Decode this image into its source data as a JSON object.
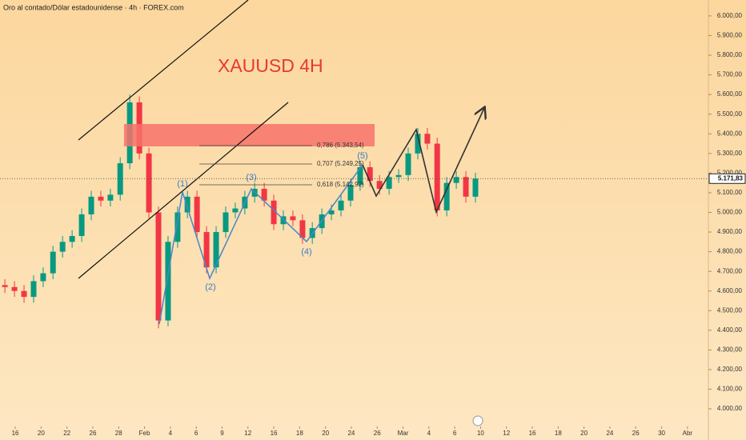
{
  "chart_data": {
    "type": "candlestick",
    "title": "Oro al contado/Dólar estadounidense · 4h · FOREX.com",
    "annotation": "XAUUSD 4H",
    "fib_labels": [
      "0,786 (5.343,54)",
      "0,707 (5.249,25)",
      "0,618 (5.142,92)"
    ],
    "wave_labels": [
      "(1)",
      "(2)",
      "(3)",
      "(4)",
      "(5)"
    ],
    "last_price": {
      "value": 5171.83,
      "label": "5.171,83"
    },
    "up_color": "#089981",
    "down_color": "#f23645",
    "x": [
      -0.4,
      -0.03,
      0.34,
      0.71,
      1.08,
      1.46,
      1.83,
      2.2,
      2.57,
      2.94,
      3.31,
      3.68,
      4.06,
      4.43,
      4.8,
      5.17,
      5.54,
      5.91,
      6.28,
      6.66,
      7.03,
      7.4,
      7.77,
      8.14,
      8.51,
      8.88,
      9.26,
      9.63,
      10.0,
      10.37,
      10.74,
      11.11,
      11.49,
      11.86,
      12.23,
      12.6,
      12.97,
      13.34,
      13.72,
      14.09,
      14.46,
      14.83,
      15.2,
      15.57,
      15.94,
      16.32,
      16.69,
      17.06,
      17.43,
      17.8
    ],
    "open": [
      4630,
      4620,
      4600,
      4570,
      4650,
      4690,
      4800,
      4850,
      4880,
      4990,
      5080,
      5060,
      5090,
      5250,
      5560,
      5300,
      5000,
      4450,
      4850,
      5000,
      5080,
      4900,
      4720,
      4900,
      5000,
      5020,
      5080,
      5120,
      5060,
      4940,
      4980,
      4960,
      4870,
      4920,
      4990,
      5010,
      5060,
      5140,
      5230,
      5160,
      5120,
      5180,
      5190,
      5300,
      5400,
      5350,
      5010,
      5150,
      5180,
      5080
    ],
    "high": [
      4660,
      4650,
      4630,
      4680,
      4720,
      4830,
      4880,
      4910,
      5020,
      5110,
      5110,
      5120,
      5280,
      5600,
      5590,
      5330,
      5030,
      4880,
      5030,
      5110,
      5110,
      4930,
      4930,
      5030,
      5050,
      5110,
      5150,
      5150,
      5090,
      5010,
      5010,
      4990,
      4950,
      5020,
      5040,
      5090,
      5170,
      5260,
      5260,
      5190,
      5210,
      5220,
      5330,
      5430,
      5430,
      5380,
      5180,
      5210,
      5210,
      5202
    ],
    "low": [
      4590,
      4570,
      4540,
      4540,
      4620,
      4660,
      4770,
      4820,
      4850,
      4960,
      5030,
      5030,
      5060,
      5220,
      5270,
      4970,
      4410,
      4420,
      4820,
      4970,
      4870,
      4690,
      4690,
      4870,
      4970,
      4990,
      5050,
      5030,
      4910,
      4910,
      4930,
      4840,
      4840,
      4890,
      4960,
      4980,
      5030,
      5110,
      5130,
      5090,
      5090,
      5150,
      5160,
      5270,
      5320,
      4980,
      4980,
      5120,
      5050,
      5050
    ],
    "close": [
      4620,
      4600,
      4570,
      4650,
      4690,
      4800,
      4850,
      4880,
      4990,
      5080,
      5060,
      5090,
      5250,
      5560,
      5300,
      5000,
      4450,
      4850,
      5000,
      5080,
      4900,
      4720,
      4900,
      5000,
      5020,
      5080,
      5120,
      5060,
      4940,
      4980,
      4960,
      4870,
      4920,
      4990,
      5010,
      5060,
      5140,
      5230,
      5160,
      5120,
      5180,
      5190,
      5300,
      5400,
      5350,
      5010,
      5150,
      5180,
      5080,
      5172
    ],
    "xlim": [
      -0.59,
      26.81
    ],
    "xticks": [
      {
        "value": 0,
        "label": "16"
      },
      {
        "value": 1,
        "label": "20"
      },
      {
        "value": 2,
        "label": "22"
      },
      {
        "value": 3,
        "label": "26"
      },
      {
        "value": 4,
        "label": "28"
      },
      {
        "value": 5,
        "label": "Feb"
      },
      {
        "value": 6,
        "label": "4"
      },
      {
        "value": 7,
        "label": "6"
      },
      {
        "value": 8,
        "label": "9"
      },
      {
        "value": 9,
        "label": "12"
      },
      {
        "value": 10,
        "label": "16"
      },
      {
        "value": 11,
        "label": "18"
      },
      {
        "value": 12,
        "label": "20"
      },
      {
        "value": 13,
        "label": "24"
      },
      {
        "value": 14,
        "label": "26"
      },
      {
        "value": 15,
        "label": "Mar"
      },
      {
        "value": 16,
        "label": "4"
      },
      {
        "value": 17,
        "label": "6"
      },
      {
        "value": 18,
        "label": "10"
      },
      {
        "value": 19,
        "label": "12"
      },
      {
        "value": 20,
        "label": "16"
      },
      {
        "value": 21,
        "label": "18"
      },
      {
        "value": 22,
        "label": "20"
      },
      {
        "value": 23,
        "label": "24"
      },
      {
        "value": 24,
        "label": "26"
      },
      {
        "value": 25,
        "label": "30"
      },
      {
        "value": 26,
        "label": "Abr"
      }
    ],
    "ylim": [
      3923,
      6081
    ],
    "yticks": [
      {
        "value": 4000,
        "label": "4.000,00"
      },
      {
        "value": 4100,
        "label": "4.100,00"
      },
      {
        "value": 4200,
        "label": "4.200,00"
      },
      {
        "value": 4300,
        "label": "4.300,00"
      },
      {
        "value": 4400,
        "label": "4.400,00"
      },
      {
        "value": 4500,
        "label": "4.500,00"
      },
      {
        "value": 4600,
        "label": "4.600,00"
      },
      {
        "value": 4700,
        "label": "4.700,00"
      },
      {
        "value": 4800,
        "label": "4.800,00"
      },
      {
        "value": 4900,
        "label": "4.900,00"
      },
      {
        "value": 5000,
        "label": "5.000,00"
      },
      {
        "value": 5100,
        "label": "5.100,00"
      },
      {
        "value": 5200,
        "label": "5.200,00"
      },
      {
        "value": 5300,
        "label": "5.300,00"
      },
      {
        "value": 5400,
        "label": "5.400,00"
      },
      {
        "value": 5500,
        "label": "5.500,00"
      },
      {
        "value": 5600,
        "label": "5.600,00"
      },
      {
        "value": 5700,
        "label": "5.700,00"
      },
      {
        "value": 5800,
        "label": "5.800,00"
      },
      {
        "value": 5900,
        "label": "5.900,00"
      },
      {
        "value": 6000,
        "label": "6.000,00"
      }
    ]
  }
}
